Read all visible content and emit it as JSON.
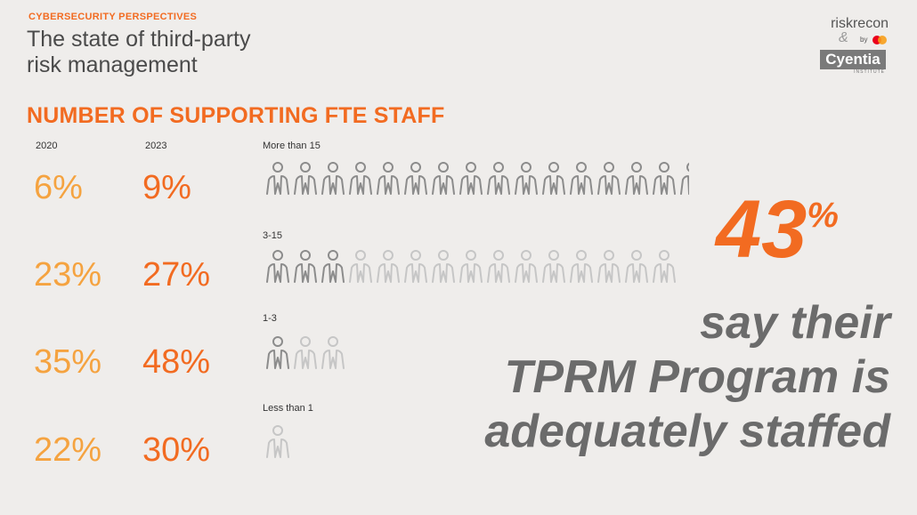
{
  "header": {
    "eyebrow": "CYBERSECURITY PERSPECTIVES",
    "subtitle_line1": "The state of third-party",
    "subtitle_line2": "risk management"
  },
  "logo": {
    "brand1": "riskrecon",
    "amp": "&",
    "by": "by",
    "brand2": "Cyentia",
    "brand2_sub": "INSTITUTE"
  },
  "section_title": "NUMBER OF SUPPORTING FTE STAFF",
  "year_labels": {
    "y2020": "2020",
    "y2023": "2023"
  },
  "colors": {
    "accent_orange": "#f26b21",
    "light_orange": "#f5a340",
    "icon_dark": "#8c8c8c",
    "icon_light": "#c6c6c6",
    "statement_gray": "#6b6b6b"
  },
  "rows": [
    {
      "category": "More than 15",
      "pct_2020": "6%",
      "pct_2023": "9%",
      "icons_total": 16,
      "icons_dark": 16
    },
    {
      "category": "3-15",
      "pct_2020": "23%",
      "pct_2023": "27%",
      "icons_total": 15,
      "icons_dark": 3
    },
    {
      "category": "1-3",
      "pct_2020": "35%",
      "pct_2023": "48%",
      "icons_total": 3,
      "icons_dark": 1
    },
    {
      "category": "Less than 1",
      "pct_2020": "22%",
      "pct_2023": "30%",
      "icons_total": 1,
      "icons_dark": 0
    }
  ],
  "callout": {
    "number": "43",
    "percent_sign": "%",
    "line1": "say their",
    "line2": "TPRM Program is",
    "line3": "adequately staffed"
  }
}
